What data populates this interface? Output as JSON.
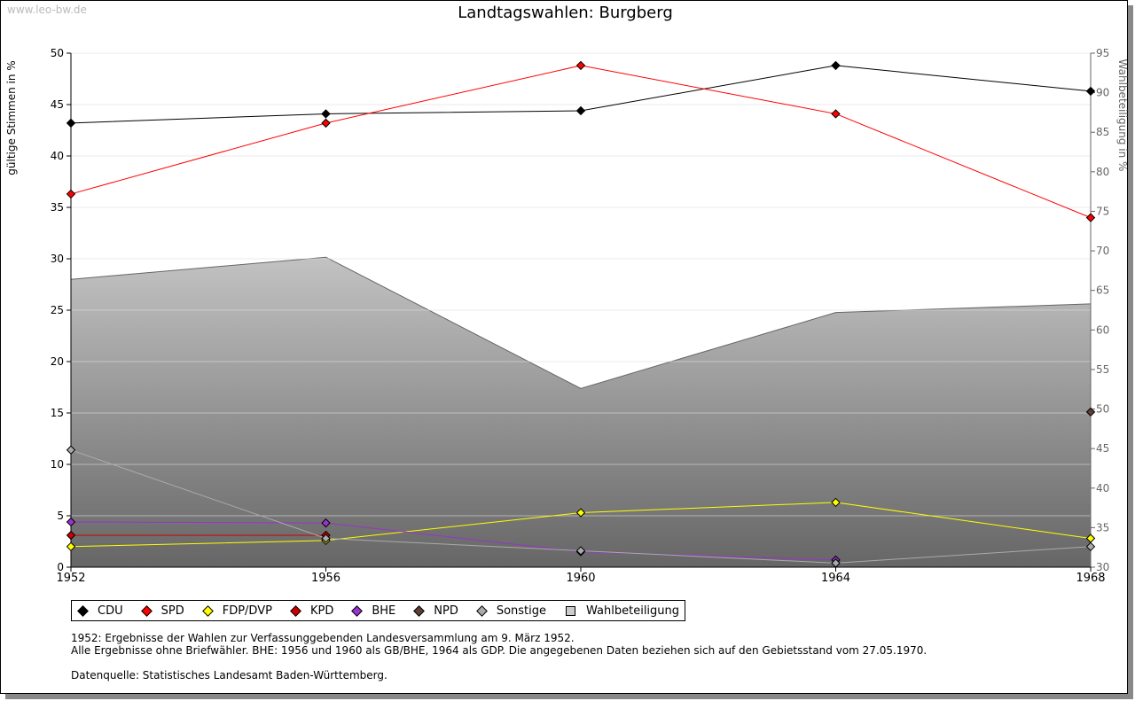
{
  "watermark": "www.leo-bw.de",
  "chart_data": {
    "type": "line",
    "title": "Landtagswahlen: Burgberg",
    "ylabel": "gültige Stimmen in %",
    "y2label": "Wahlbeteiligung in %",
    "ylim": [
      0,
      50
    ],
    "y2lim": [
      30,
      95
    ],
    "yticks": [
      0,
      5,
      10,
      15,
      20,
      25,
      30,
      35,
      40,
      45,
      50
    ],
    "y2ticks": [
      30,
      35,
      40,
      45,
      50,
      55,
      60,
      65,
      70,
      75,
      80,
      85,
      90,
      95
    ],
    "categories": [
      "1952",
      "1956",
      "1960",
      "1964",
      "1968"
    ],
    "grid": true,
    "legend_position": "bottom",
    "series": [
      {
        "name": "CDU",
        "color": "#000000",
        "values": [
          43.2,
          44.1,
          44.4,
          48.8,
          46.3
        ]
      },
      {
        "name": "SPD",
        "color": "#ff0000",
        "values": [
          36.3,
          43.2,
          48.8,
          44.1,
          34.0
        ]
      },
      {
        "name": "FDP/DVP",
        "color": "#ffff00",
        "values": [
          2.0,
          2.6,
          5.3,
          6.3,
          2.8
        ]
      },
      {
        "name": "KPD",
        "color": "#cc0000",
        "values": [
          3.1,
          3.1,
          null,
          null,
          null
        ]
      },
      {
        "name": "BHE",
        "color": "#9933cc",
        "values": [
          4.4,
          4.3,
          1.5,
          0.7,
          null
        ]
      },
      {
        "name": "NPD",
        "color": "#5c4033",
        "values": [
          null,
          null,
          null,
          null,
          15.1
        ]
      },
      {
        "name": "Sonstige",
        "color": "#aaaaaa",
        "values": [
          11.4,
          2.8,
          1.6,
          0.4,
          2.0
        ]
      }
    ],
    "area": {
      "name": "Wahlbeteiligung",
      "axis": "right",
      "values": [
        66.4,
        69.2,
        52.6,
        62.2,
        63.3
      ]
    }
  },
  "notes": [
    "1952: Ergebnisse der Wahlen zur Verfassunggebenden Landesversammlung am 9. März 1952.",
    "Alle Ergebnisse ohne Briefwähler. BHE: 1956 und 1960 als GB/BHE, 1964 als GDP. Die angegebenen Daten beziehen sich auf den Gebietsstand vom 27.05.1970.",
    "",
    "Datenquelle: Statistisches Landesamt Baden-Württemberg."
  ]
}
